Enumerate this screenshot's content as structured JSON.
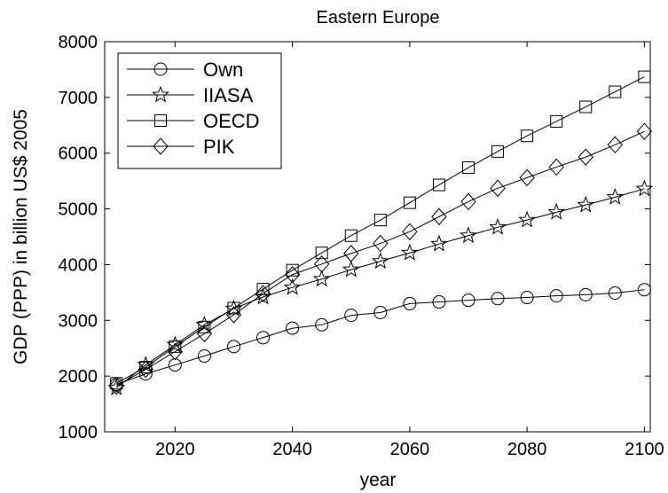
{
  "chart_data": {
    "type": "line",
    "title": "Eastern Europe",
    "xlabel": "year",
    "ylabel": "GDP (PPP) in billion US$ 2005",
    "xlim": [
      2008,
      2101
    ],
    "ylim": [
      1000,
      8000
    ],
    "xticks": [
      2020,
      2040,
      2060,
      2080,
      2100
    ],
    "yticks": [
      1000,
      2000,
      3000,
      4000,
      5000,
      6000,
      7000,
      8000
    ],
    "grid": false,
    "legend_position": "top-left",
    "x": [
      2010,
      2015,
      2020,
      2025,
      2030,
      2035,
      2040,
      2045,
      2050,
      2055,
      2060,
      2065,
      2070,
      2075,
      2080,
      2085,
      2090,
      2095,
      2100
    ],
    "series": [
      {
        "name": "Own",
        "marker": "circle",
        "values": [
          1850,
          2040,
          2200,
          2360,
          2530,
          2690,
          2860,
          2920,
          3090,
          3140,
          3300,
          3330,
          3360,
          3390,
          3410,
          3440,
          3460,
          3490,
          3550
        ]
      },
      {
        "name": "IIASA",
        "marker": "star",
        "values": [
          1790,
          2200,
          2560,
          2920,
          3210,
          3420,
          3590,
          3740,
          3910,
          4060,
          4210,
          4370,
          4520,
          4670,
          4800,
          4940,
          5070,
          5210,
          5360
        ]
      },
      {
        "name": "OECD",
        "marker": "square",
        "values": [
          1870,
          2160,
          2530,
          2880,
          3220,
          3560,
          3900,
          4210,
          4520,
          4800,
          5110,
          5430,
          5740,
          6030,
          6310,
          6570,
          6830,
          7100,
          7370
        ]
      },
      {
        "name": "PIK",
        "marker": "diamond",
        "values": [
          1820,
          2120,
          2440,
          2760,
          3100,
          3480,
          3820,
          4010,
          4200,
          4380,
          4590,
          4860,
          5130,
          5370,
          5560,
          5750,
          5930,
          6150,
          6390
        ]
      }
    ]
  }
}
